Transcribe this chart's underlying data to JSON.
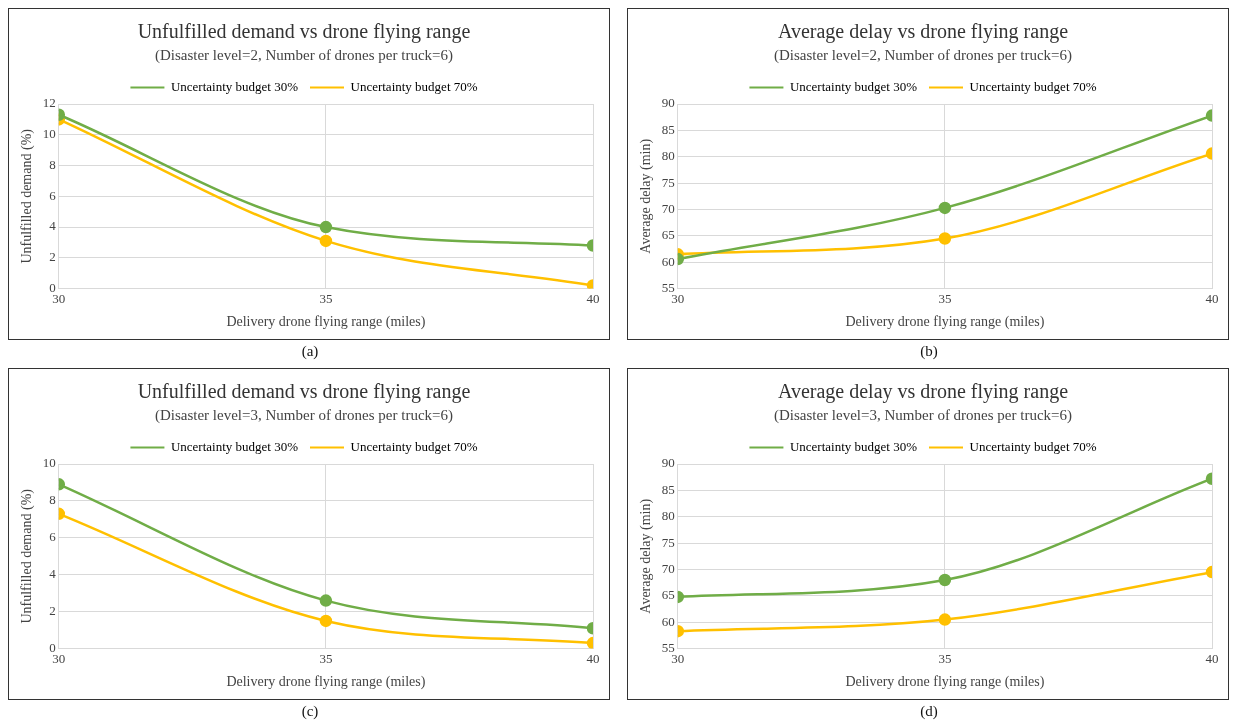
{
  "chart_data": [
    {
      "type": "line",
      "title": "Unfulfilled demand vs drone flying range",
      "subtitle": "(Disaster level=2, Number of drones per truck=6)",
      "xlabel": "Delivery drone flying range (miles)",
      "ylabel": "Unfulfilled demand (%)",
      "x": [
        30,
        35,
        40
      ],
      "xlim": [
        30,
        40
      ],
      "xticks": [
        30,
        35,
        40
      ],
      "ylim": [
        0,
        12
      ],
      "yticks": [
        0,
        2,
        4,
        6,
        8,
        10,
        12
      ],
      "grid": true,
      "legend": "top",
      "marker": "circle",
      "line_style": "solid",
      "annotations": [
        "(a)"
      ],
      "series": [
        {
          "name": "Uncertainty budget 30%",
          "color": "#70ad47",
          "values": [
            11.3,
            4.0,
            2.8
          ]
        },
        {
          "name": "Uncertainty budget 70%",
          "color": "#ffc000",
          "values": [
            11.0,
            3.1,
            0.2
          ]
        }
      ]
    },
    {
      "type": "line",
      "title": "Average delay vs drone flying range",
      "subtitle": "(Disaster level=2, Number of drones per truck=6)",
      "xlabel": "Delivery drone flying range (miles)",
      "ylabel": "Average delay (min)",
      "x": [
        30,
        35,
        40
      ],
      "xlim": [
        30,
        40
      ],
      "xticks": [
        30,
        35,
        40
      ],
      "ylim": [
        55,
        90
      ],
      "yticks": [
        55,
        60,
        65,
        70,
        75,
        80,
        85,
        90
      ],
      "grid": true,
      "legend": "top",
      "marker": "circle",
      "line_style": "solid",
      "annotations": [
        "(b)"
      ],
      "series": [
        {
          "name": "Uncertainty budget 30%",
          "color": "#70ad47",
          "values": [
            60.6,
            70.3,
            87.8
          ]
        },
        {
          "name": "Uncertainty budget 70%",
          "color": "#ffc000",
          "values": [
            61.5,
            64.5,
            80.6
          ]
        }
      ]
    },
    {
      "type": "line",
      "title": "Unfulfilled demand vs drone flying range",
      "subtitle": "(Disaster level=3, Number of drones per truck=6)",
      "xlabel": "Delivery drone flying range (miles)",
      "ylabel": "Unfulfilled demand (%)",
      "x": [
        30,
        35,
        40
      ],
      "xlim": [
        30,
        40
      ],
      "xticks": [
        30,
        35,
        40
      ],
      "ylim": [
        0,
        10
      ],
      "yticks": [
        0,
        2,
        4,
        6,
        8,
        10
      ],
      "grid": true,
      "legend": "top",
      "marker": "circle",
      "line_style": "solid",
      "annotations": [
        "(c)"
      ],
      "series": [
        {
          "name": "Uncertainty budget 30%",
          "color": "#70ad47",
          "values": [
            8.9,
            2.6,
            1.1
          ]
        },
        {
          "name": "Uncertainty budget 70%",
          "color": "#ffc000",
          "values": [
            7.3,
            1.5,
            0.3
          ]
        }
      ]
    },
    {
      "type": "line",
      "title": "Average delay vs drone flying range",
      "subtitle": "(Disaster level=3, Number of drones per truck=6)",
      "xlabel": "Delivery drone flying range (miles)",
      "ylabel": "Average delay (min)",
      "x": [
        30,
        35,
        40
      ],
      "xlim": [
        30,
        40
      ],
      "xticks": [
        30,
        35,
        40
      ],
      "ylim": [
        55,
        90
      ],
      "yticks": [
        55,
        60,
        65,
        70,
        75,
        80,
        85,
        90
      ],
      "grid": true,
      "legend": "top",
      "marker": "circle",
      "line_style": "solid",
      "annotations": [
        "(d)"
      ],
      "series": [
        {
          "name": "Uncertainty budget 30%",
          "color": "#70ad47",
          "values": [
            64.8,
            68.0,
            87.2
          ]
        },
        {
          "name": "Uncertainty budget 70%",
          "color": "#ffc000",
          "values": [
            58.3,
            60.5,
            69.5
          ]
        }
      ]
    }
  ]
}
